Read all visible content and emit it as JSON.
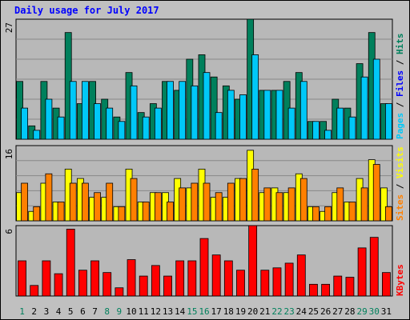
{
  "title": "Daily usage for July 2017",
  "colors": {
    "background": "#c0c0c0",
    "panel": "#b8b8b8",
    "grid": "#888888",
    "hits": "#00805c",
    "files": "#0000ff",
    "pages": "#00c8f8",
    "visits": "#ffff00",
    "sites": "#ff8000",
    "kbytes": "#ff0000",
    "weekday_label": "#000000",
    "weekend_label": "#00805c",
    "separator": "#000000"
  },
  "chart_data": [
    {
      "type": "bar",
      "title": "",
      "xlabel": "",
      "ylabel": "",
      "ylim": [
        0,
        27
      ],
      "y_tick_labels": [
        "27"
      ],
      "categories": [
        "1",
        "2",
        "3",
        "4",
        "5",
        "6",
        "7",
        "8",
        "9",
        "10",
        "11",
        "12",
        "13",
        "14",
        "15",
        "16",
        "17",
        "18",
        "19",
        "20",
        "21",
        "22",
        "23",
        "24",
        "25",
        "26",
        "27",
        "28",
        "29",
        "30",
        "31"
      ],
      "weekend_days": [
        "1",
        "8",
        "9",
        "15",
        "16",
        "22",
        "23",
        "29",
        "30"
      ],
      "legend_labels": [
        "Pages",
        "Files",
        "Hits"
      ],
      "series": [
        {
          "name": "Hits",
          "color": "#00805c",
          "values": [
            13,
            3,
            13,
            7,
            24,
            8,
            13,
            9,
            5,
            15,
            6,
            8,
            13,
            11,
            18,
            19,
            14,
            12,
            9,
            27,
            11,
            11,
            13,
            15,
            4,
            4,
            9,
            7,
            17,
            24,
            8
          ]
        },
        {
          "name": "Pages",
          "color": "#00c8f8",
          "values": [
            7,
            2,
            9,
            5,
            13,
            13,
            8,
            7,
            4,
            12,
            5,
            7,
            13,
            13,
            12,
            15,
            6,
            11,
            10,
            19,
            11,
            11,
            7,
            13,
            4,
            2,
            7,
            5,
            14,
            18,
            8
          ]
        }
      ]
    },
    {
      "type": "bar",
      "title": "",
      "xlabel": "",
      "ylabel": "",
      "ylim": [
        0,
        16
      ],
      "y_tick_labels": [
        "16"
      ],
      "categories": [
        "1",
        "2",
        "3",
        "4",
        "5",
        "6",
        "7",
        "8",
        "9",
        "10",
        "11",
        "12",
        "13",
        "14",
        "15",
        "16",
        "17",
        "18",
        "19",
        "20",
        "21",
        "22",
        "23",
        "24",
        "25",
        "26",
        "27",
        "28",
        "29",
        "30",
        "31"
      ],
      "legend_labels": [
        "Sites",
        "Visits"
      ],
      "series": [
        {
          "name": "Visits",
          "color": "#ffff00",
          "values": [
            6,
            2,
            8,
            4,
            11,
            9,
            5,
            5,
            3,
            11,
            4,
            6,
            6,
            9,
            7,
            11,
            5,
            5,
            9,
            15,
            6,
            7,
            6,
            10,
            3,
            2,
            6,
            4,
            9,
            13,
            7
          ]
        },
        {
          "name": "Sites",
          "color": "#ff8000",
          "values": [
            8,
            3,
            10,
            4,
            8,
            8,
            6,
            8,
            3,
            9,
            4,
            6,
            4,
            7,
            8,
            8,
            6,
            8,
            9,
            11,
            7,
            6,
            7,
            9,
            3,
            3,
            7,
            4,
            7,
            12,
            3
          ]
        }
      ]
    },
    {
      "type": "bar",
      "title": "",
      "xlabel": "",
      "ylabel": "",
      "ylim": [
        0,
        6
      ],
      "y_tick_labels": [
        "6"
      ],
      "categories": [
        "1",
        "2",
        "3",
        "4",
        "5",
        "6",
        "7",
        "8",
        "9",
        "10",
        "11",
        "12",
        "13",
        "14",
        "15",
        "16",
        "17",
        "18",
        "19",
        "20",
        "21",
        "22",
        "23",
        "24",
        "25",
        "26",
        "27",
        "28",
        "29",
        "30",
        "31"
      ],
      "legend_labels": [
        "KBytes"
      ],
      "series": [
        {
          "name": "KBytes",
          "color": "#ff0000",
          "values": [
            3.0,
            0.9,
            3.0,
            1.9,
            5.7,
            2.2,
            3.0,
            2.0,
            0.7,
            3.1,
            1.7,
            2.6,
            1.7,
            3.0,
            3.0,
            4.9,
            3.5,
            3.0,
            2.2,
            6.0,
            2.2,
            2.4,
            2.8,
            3.5,
            1.0,
            1.0,
            1.7,
            1.6,
            4.1,
            5.0,
            2.0
          ]
        }
      ]
    }
  ]
}
